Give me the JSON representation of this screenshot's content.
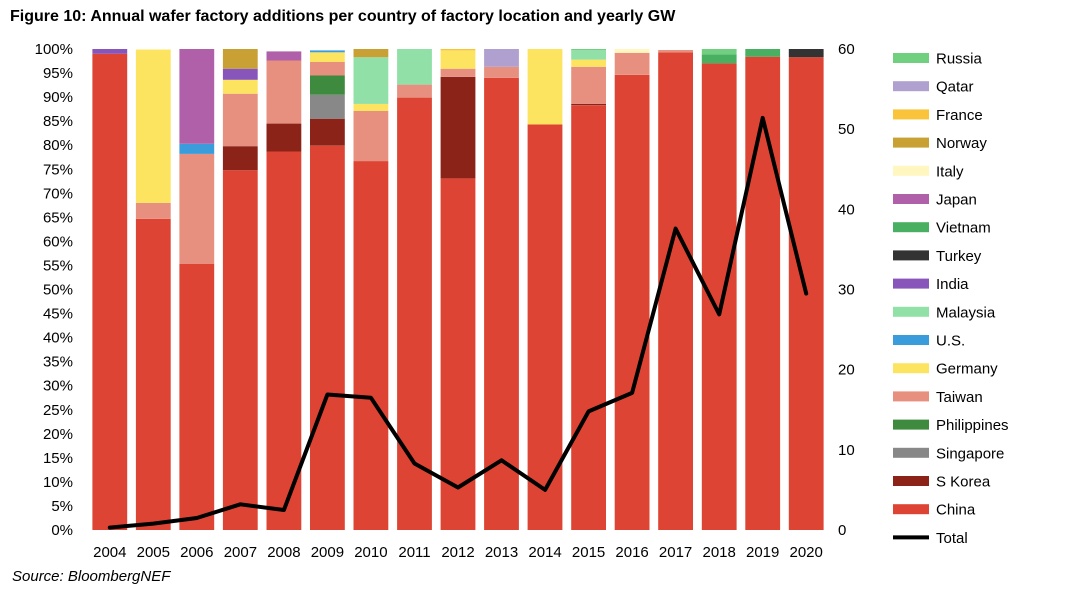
{
  "figure": {
    "title": "Figure 10: Annual wafer factory additions per country of factory location and yearly GW",
    "source": "Source: BloombergNEF"
  },
  "chart_data": {
    "type": "bar",
    "stacked": true,
    "percent_stacked": true,
    "title": "Figure 10: Annual wafer factory additions per country of factory location and yearly GW",
    "xlabel": "",
    "ylabel": "",
    "ylim": [
      0,
      100
    ],
    "y2lim": [
      0,
      60
    ],
    "y_ticks": [
      "0%",
      "5%",
      "10%",
      "15%",
      "20%",
      "25%",
      "30%",
      "35%",
      "40%",
      "45%",
      "50%",
      "55%",
      "60%",
      "65%",
      "70%",
      "75%",
      "80%",
      "85%",
      "90%",
      "95%",
      "100%"
    ],
    "y2_ticks": [
      "0",
      "10",
      "20",
      "30",
      "40",
      "50",
      "60"
    ],
    "grid": false,
    "legend_position": "right",
    "categories": [
      "2004",
      "2005",
      "2006",
      "2007",
      "2008",
      "2009",
      "2010",
      "2011",
      "2012",
      "2013",
      "2014",
      "2015",
      "2016",
      "2017",
      "2018",
      "2019",
      "2020"
    ],
    "series": [
      {
        "name": "China",
        "color": "#dd4433",
        "values": [
          99,
          64.7,
          55.3,
          74.8,
          78.7,
          79.9,
          76.7,
          89.9,
          73.1,
          94.0,
          84.3,
          88.3,
          94.6,
          99.3,
          97.0,
          98.4,
          98.3
        ]
      },
      {
        "name": "S Korea",
        "color": "#8b2318",
        "values": [
          0,
          0,
          0,
          5.0,
          5.8,
          5.6,
          0,
          0,
          21.1,
          0,
          0,
          0.3,
          0,
          0,
          0,
          0,
          0
        ]
      },
      {
        "name": "Singapore",
        "color": "#888888",
        "values": [
          0,
          0,
          0,
          0,
          0,
          5.0,
          0,
          0,
          0,
          0,
          0,
          0,
          0,
          0,
          0,
          0,
          0
        ]
      },
      {
        "name": "Philippines",
        "color": "#3e8a3e",
        "values": [
          0,
          0,
          0,
          0,
          0,
          4.0,
          0,
          0,
          0,
          0,
          0,
          0,
          0,
          0,
          0,
          0,
          0
        ]
      },
      {
        "name": "Taiwan",
        "color": "#e8907f",
        "values": [
          0,
          3.3,
          22.9,
          10.9,
          13.1,
          2.8,
          10.4,
          2.7,
          1.7,
          2.3,
          0,
          7.7,
          4.6,
          0.5,
          0,
          0,
          0
        ]
      },
      {
        "name": "Germany",
        "color": "#fde460",
        "values": [
          0,
          31.9,
          0,
          2.9,
          0,
          2.0,
          1.5,
          0,
          3.8,
          0,
          15.7,
          1.5,
          0,
          0,
          0,
          0,
          0
        ]
      },
      {
        "name": "U.S.",
        "color": "#3a9cdb",
        "values": [
          0,
          0,
          2.1,
          0,
          0,
          0.4,
          0,
          0,
          0,
          0,
          0,
          0,
          0,
          0,
          0,
          0,
          0
        ]
      },
      {
        "name": "Malaysia",
        "color": "#90e0a8",
        "values": [
          0,
          0,
          0,
          0,
          0,
          0,
          9.7,
          7.4,
          0,
          0,
          0,
          2.0,
          0,
          0,
          0,
          0,
          0
        ]
      },
      {
        "name": "India",
        "color": "#8855bb",
        "values": [
          1.0,
          0,
          0,
          2.3,
          0,
          0,
          0,
          0,
          0,
          0,
          0,
          0,
          0,
          0,
          0,
          0,
          0
        ]
      },
      {
        "name": "Turkey",
        "color": "#333333",
        "values": [
          0,
          0,
          0,
          0,
          0,
          0,
          0,
          0,
          0,
          0,
          0,
          0,
          0,
          0,
          0,
          0,
          1.7
        ]
      },
      {
        "name": "Vietnam",
        "color": "#48b060",
        "values": [
          0,
          0,
          0,
          0,
          0,
          0,
          0,
          0,
          0,
          0,
          0,
          0,
          0,
          0,
          1.9,
          1.6,
          0
        ]
      },
      {
        "name": "Japan",
        "color": "#b060a8",
        "values": [
          0,
          0,
          19.7,
          0,
          1.9,
          0,
          0,
          0,
          0,
          0,
          0,
          0,
          0,
          0,
          0,
          0,
          0
        ]
      },
      {
        "name": "Italy",
        "color": "#fff6c0",
        "values": [
          0,
          0,
          0,
          0,
          0,
          0,
          0,
          0,
          0,
          0,
          0,
          0,
          0.8,
          0,
          0,
          0,
          0
        ]
      },
      {
        "name": "Norway",
        "color": "#c9a033",
        "values": [
          0,
          0,
          0,
          4.1,
          0,
          0,
          1.7,
          0,
          0,
          0,
          0,
          0,
          0,
          0,
          0,
          0,
          0
        ]
      },
      {
        "name": "France",
        "color": "#fac43a",
        "values": [
          0,
          0,
          0,
          0,
          0,
          0,
          0,
          0,
          0.3,
          0,
          0,
          0,
          0,
          0,
          0,
          0,
          0
        ]
      },
      {
        "name": "Qatar",
        "color": "#b0a0d0",
        "values": [
          0,
          0,
          0,
          0,
          0,
          0,
          0,
          0,
          0,
          3.7,
          0,
          0,
          0,
          0,
          0,
          0,
          0
        ]
      },
      {
        "name": "Russia",
        "color": "#70d080",
        "values": [
          0,
          0,
          0,
          0,
          0,
          0,
          0,
          0,
          0,
          0,
          0,
          0.2,
          0,
          0,
          1.1,
          0,
          0
        ]
      }
    ],
    "line": {
      "name": "Total",
      "color": "#000000",
      "axis": "right",
      "values": [
        0.3,
        0.8,
        1.5,
        3.2,
        2.5,
        16.9,
        16.5,
        8.3,
        5.3,
        8.7,
        5.0,
        14.8,
        17.1,
        37.6,
        26.9,
        51.4,
        29.5
      ]
    },
    "legend_order": [
      "Russia",
      "Qatar",
      "France",
      "Norway",
      "Italy",
      "Japan",
      "Vietnam",
      "Turkey",
      "India",
      "Malaysia",
      "U.S.",
      "Germany",
      "Taiwan",
      "Philippines",
      "Singapore",
      "S Korea",
      "China",
      "Total"
    ]
  }
}
